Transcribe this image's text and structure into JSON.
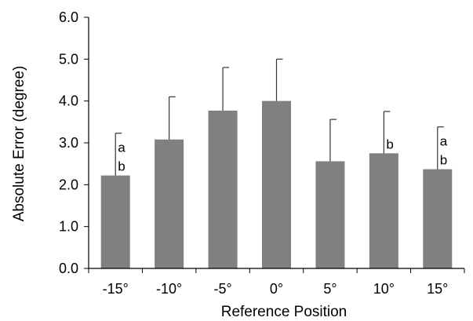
{
  "chart_data": {
    "type": "bar",
    "categories": [
      "-15°",
      "-10°",
      "-5°",
      "0°",
      "5°",
      "10°",
      "15°"
    ],
    "series": [
      {
        "values": [
          2.22,
          3.08,
          3.77,
          4.0,
          2.56,
          2.75,
          2.37
        ],
        "error_plus": [
          1.01,
          1.02,
          1.03,
          1.0,
          1.0,
          1.0,
          1.01
        ]
      }
    ],
    "significance_labels": [
      [
        "a",
        "b"
      ],
      [],
      [],
      [],
      [],
      [
        "b"
      ],
      [
        "a",
        "b"
      ]
    ],
    "xlabel": "Reference Position",
    "ylabel": "Absolute Error (degree)",
    "ylim": [
      0,
      6
    ],
    "yticks": [
      "0.0",
      "1.0",
      "2.0",
      "3.0",
      "4.0",
      "5.0",
      "6.0"
    ],
    "grid": false,
    "bar_color": "#808080",
    "axis_color": "#000000"
  }
}
